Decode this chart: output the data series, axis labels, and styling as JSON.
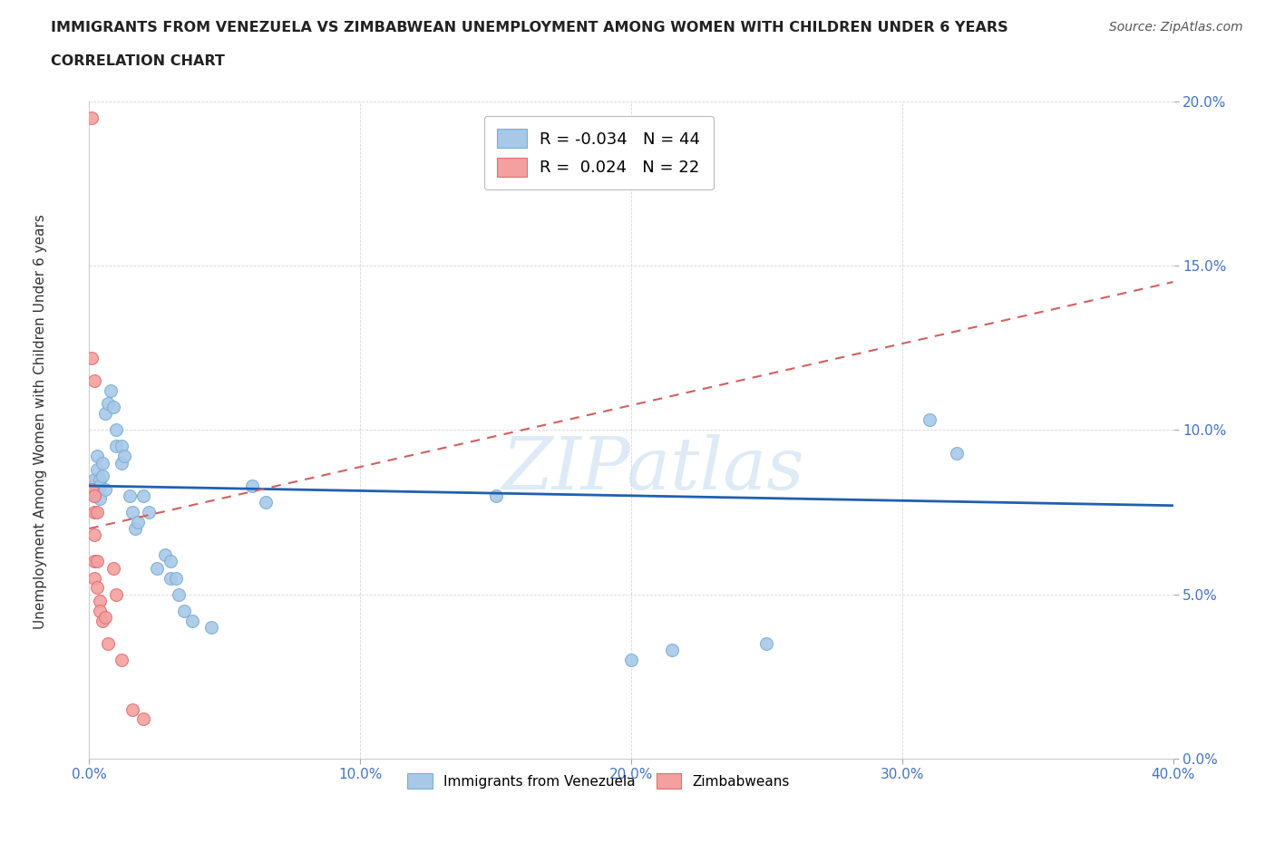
{
  "title_line1": "IMMIGRANTS FROM VENEZUELA VS ZIMBABWEAN UNEMPLOYMENT AMONG WOMEN WITH CHILDREN UNDER 6 YEARS",
  "title_line2": "CORRELATION CHART",
  "source": "Source: ZipAtlas.com",
  "xlim": [
    0,
    0.4
  ],
  "ylim": [
    0,
    0.2
  ],
  "x_ticks": [
    0.0,
    0.1,
    0.2,
    0.3,
    0.4
  ],
  "y_ticks": [
    0.0,
    0.05,
    0.1,
    0.15,
    0.2
  ],
  "x_tick_labels": [
    "0.0%",
    "10.0%",
    "20.0%",
    "30.0%",
    "40.0%"
  ],
  "y_tick_labels": [
    "0.0%",
    "5.0%",
    "10.0%",
    "15.0%",
    "20.0%"
  ],
  "ylabel": "Unemployment Among Women with Children Under 6 years",
  "legend_blue_r": "-0.034",
  "legend_blue_n": "44",
  "legend_pink_r": "0.024",
  "legend_pink_n": "22",
  "blue_scatter": [
    [
      0.001,
      0.083
    ],
    [
      0.002,
      0.08
    ],
    [
      0.002,
      0.085
    ],
    [
      0.003,
      0.088
    ],
    [
      0.003,
      0.082
    ],
    [
      0.003,
      0.092
    ],
    [
      0.004,
      0.085
    ],
    [
      0.004,
      0.079
    ],
    [
      0.004,
      0.083
    ],
    [
      0.005,
      0.09
    ],
    [
      0.005,
      0.086
    ],
    [
      0.006,
      0.082
    ],
    [
      0.006,
      0.105
    ],
    [
      0.007,
      0.108
    ],
    [
      0.008,
      0.112
    ],
    [
      0.009,
      0.107
    ],
    [
      0.01,
      0.1
    ],
    [
      0.01,
      0.095
    ],
    [
      0.012,
      0.09
    ],
    [
      0.012,
      0.095
    ],
    [
      0.013,
      0.092
    ],
    [
      0.015,
      0.08
    ],
    [
      0.016,
      0.075
    ],
    [
      0.017,
      0.07
    ],
    [
      0.018,
      0.072
    ],
    [
      0.02,
      0.08
    ],
    [
      0.022,
      0.075
    ],
    [
      0.025,
      0.058
    ],
    [
      0.028,
      0.062
    ],
    [
      0.03,
      0.06
    ],
    [
      0.03,
      0.055
    ],
    [
      0.032,
      0.055
    ],
    [
      0.033,
      0.05
    ],
    [
      0.035,
      0.045
    ],
    [
      0.038,
      0.042
    ],
    [
      0.045,
      0.04
    ],
    [
      0.06,
      0.083
    ],
    [
      0.065,
      0.078
    ],
    [
      0.15,
      0.08
    ],
    [
      0.2,
      0.03
    ],
    [
      0.215,
      0.033
    ],
    [
      0.25,
      0.035
    ],
    [
      0.31,
      0.103
    ],
    [
      0.32,
      0.093
    ]
  ],
  "pink_scatter": [
    [
      0.001,
      0.195
    ],
    [
      0.001,
      0.122
    ],
    [
      0.001,
      0.082
    ],
    [
      0.002,
      0.115
    ],
    [
      0.002,
      0.08
    ],
    [
      0.002,
      0.075
    ],
    [
      0.002,
      0.068
    ],
    [
      0.002,
      0.06
    ],
    [
      0.002,
      0.055
    ],
    [
      0.003,
      0.075
    ],
    [
      0.003,
      0.06
    ],
    [
      0.003,
      0.052
    ],
    [
      0.004,
      0.048
    ],
    [
      0.004,
      0.045
    ],
    [
      0.005,
      0.042
    ],
    [
      0.006,
      0.043
    ],
    [
      0.007,
      0.035
    ],
    [
      0.009,
      0.058
    ],
    [
      0.01,
      0.05
    ],
    [
      0.012,
      0.03
    ],
    [
      0.016,
      0.015
    ],
    [
      0.02,
      0.012
    ]
  ],
  "blue_line": [
    [
      0.0,
      0.083
    ],
    [
      0.4,
      0.077
    ]
  ],
  "pink_line": [
    [
      0.0,
      0.07
    ],
    [
      0.4,
      0.145
    ]
  ],
  "blue_dot_color": "#a8c8e8",
  "blue_dot_edge": "#7aafd4",
  "pink_dot_color": "#f4a0a0",
  "pink_dot_edge": "#e07070",
  "blue_line_color": "#2060b0",
  "pink_line_color": "#d06060",
  "tick_label_color": "#4472c4",
  "watermark_text": "ZIPatlas",
  "watermark_color": "#c8dff0",
  "bg_color": "#ffffff",
  "grid_color": "#cccccc",
  "title_color": "#222222",
  "source_color": "#555555"
}
